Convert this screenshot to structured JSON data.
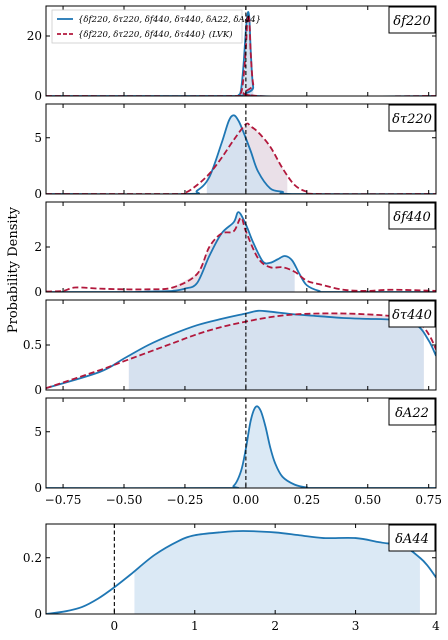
{
  "figure": {
    "ylabel": "Probability Density",
    "colors": {
      "blue": "#1f77b4",
      "red": "#b2183c",
      "blue_fill": "#cfe2f2",
      "red_fill": "#d9c7d6",
      "zero_line": "#000000"
    }
  },
  "legend": {
    "items": [
      {
        "label": "{δf220, δτ220, δf440, δτ440, δA22, δA44}",
        "style": "solid",
        "color": "#1f77b4"
      },
      {
        "label": "{δf220, δτ220, δf440, δτ440} (LVK)",
        "style": "dashed",
        "color": "#b2183c"
      }
    ]
  },
  "chart_data": [
    {
      "type": "area",
      "panel_label": "δf220",
      "xlim": [
        -0.82,
        0.78
      ],
      "ylim": [
        0,
        30
      ],
      "yticks": [
        0,
        20
      ],
      "ref_line_x": 0,
      "series": [
        {
          "style": "solid",
          "color": "#1f77b4",
          "x": [
            -0.82,
            -0.05,
            -0.03,
            -0.02,
            -0.01,
            0.0,
            0.005,
            0.01,
            0.015,
            0.02,
            0.03,
            0.05,
            0.78
          ],
          "y": [
            0,
            0,
            0.3,
            2,
            10,
            22,
            26,
            28,
            25,
            15,
            3,
            0,
            0
          ]
        },
        {
          "style": "dashed",
          "color": "#b2183c",
          "x": [
            -0.82,
            -0.04,
            -0.02,
            -0.01,
            0.0,
            0.005,
            0.01,
            0.015,
            0.02,
            0.03,
            0.05,
            0.78
          ],
          "y": [
            0,
            0,
            1,
            6,
            16,
            24,
            27,
            24,
            14,
            4,
            0,
            0
          ]
        }
      ],
      "fill_range": [
        -0.02,
        0.03
      ]
    },
    {
      "type": "area",
      "panel_label": "δτ220",
      "xlim": [
        -0.82,
        0.78
      ],
      "ylim": [
        0,
        8
      ],
      "yticks": [
        0,
        5
      ],
      "ref_line_x": 0,
      "series": [
        {
          "style": "solid",
          "color": "#1f77b4",
          "x": [
            -0.82,
            -0.25,
            -0.2,
            -0.15,
            -0.1,
            -0.07,
            -0.05,
            -0.03,
            -0.01,
            0.02,
            0.05,
            0.1,
            0.15,
            0.2,
            0.78
          ],
          "y": [
            0,
            0,
            0.3,
            1.5,
            4.5,
            6.5,
            7.0,
            6.5,
            5.5,
            3.8,
            2.0,
            0.5,
            0.2,
            0,
            0
          ]
        },
        {
          "style": "dashed",
          "color": "#b2183c",
          "x": [
            -0.82,
            -0.3,
            -0.25,
            -0.2,
            -0.15,
            -0.1,
            -0.05,
            0.0,
            0.02,
            0.05,
            0.1,
            0.15,
            0.2,
            0.25,
            0.3,
            0.78
          ],
          "y": [
            0,
            0,
            0.1,
            0.8,
            1.8,
            3.2,
            4.8,
            6.2,
            6.0,
            5.5,
            4.2,
            2.3,
            0.8,
            0.2,
            0,
            0
          ]
        }
      ],
      "fill_range": [
        -0.16,
        0.17
      ]
    },
    {
      "type": "area",
      "panel_label": "δf440",
      "xlim": [
        -0.82,
        0.78
      ],
      "ylim": [
        0,
        4
      ],
      "yticks": [
        0,
        2
      ],
      "ref_line_x": 0,
      "series": [
        {
          "style": "solid",
          "color": "#1f77b4",
          "x": [
            -0.82,
            -0.5,
            -0.4,
            -0.3,
            -0.25,
            -0.2,
            -0.15,
            -0.1,
            -0.05,
            -0.03,
            0.0,
            0.03,
            0.07,
            0.1,
            0.13,
            0.16,
            0.19,
            0.22,
            0.25,
            0.3,
            0.35,
            0.78
          ],
          "y": [
            0,
            0,
            0.02,
            0.05,
            0.15,
            0.4,
            1.6,
            2.6,
            3.1,
            3.55,
            3.0,
            2.2,
            1.35,
            1.3,
            1.45,
            1.6,
            1.4,
            0.8,
            0.3,
            0.05,
            0,
            0
          ]
        },
        {
          "style": "dashed",
          "color": "#b2183c",
          "x": [
            -0.82,
            -0.75,
            -0.7,
            -0.6,
            -0.5,
            -0.4,
            -0.3,
            -0.2,
            -0.15,
            -0.1,
            -0.05,
            -0.02,
            0.0,
            0.05,
            0.1,
            0.15,
            0.2,
            0.25,
            0.3,
            0.4,
            0.5,
            0.6,
            0.78
          ],
          "y": [
            0.02,
            0.05,
            0.2,
            0.15,
            0.12,
            0.12,
            0.2,
            0.8,
            2.0,
            2.6,
            2.7,
            3.3,
            2.7,
            1.5,
            1.1,
            1.1,
            0.9,
            0.5,
            0.35,
            0.1,
            0.05,
            0.1,
            0.05
          ]
        }
      ],
      "fill_range": [
        -0.3,
        0.2
      ]
    },
    {
      "type": "area",
      "panel_label": "δτ440",
      "xlim": [
        -0.82,
        0.78
      ],
      "ylim": [
        0,
        1
      ],
      "yticks": [
        0,
        0.5
      ],
      "ref_line_x": 0,
      "series": [
        {
          "style": "solid",
          "color": "#1f77b4",
          "x": [
            -0.82,
            -0.6,
            -0.5,
            -0.4,
            -0.3,
            -0.2,
            -0.1,
            0.0,
            0.05,
            0.1,
            0.2,
            0.3,
            0.4,
            0.5,
            0.6,
            0.7,
            0.75,
            0.78
          ],
          "y": [
            0.02,
            0.2,
            0.35,
            0.5,
            0.62,
            0.72,
            0.79,
            0.85,
            0.88,
            0.87,
            0.84,
            0.82,
            0.8,
            0.79,
            0.78,
            0.72,
            0.55,
            0.38
          ]
        },
        {
          "style": "dashed",
          "color": "#b2183c",
          "x": [
            -0.82,
            -0.6,
            -0.5,
            -0.4,
            -0.3,
            -0.2,
            -0.1,
            0.0,
            0.1,
            0.2,
            0.3,
            0.4,
            0.5,
            0.6,
            0.7,
            0.75,
            0.78
          ],
          "y": [
            0.02,
            0.22,
            0.32,
            0.42,
            0.52,
            0.62,
            0.7,
            0.76,
            0.81,
            0.84,
            0.85,
            0.85,
            0.84,
            0.82,
            0.77,
            0.62,
            0.45
          ]
        }
      ],
      "fill_range": [
        -0.48,
        0.73
      ]
    },
    {
      "type": "area",
      "panel_label": "δA22",
      "xlim": [
        -0.82,
        0.78
      ],
      "ylim": [
        0,
        8
      ],
      "yticks": [
        0,
        5
      ],
      "ref_line_x": 0,
      "xticks": [
        -0.75,
        -0.5,
        -0.25,
        0.0,
        0.25,
        0.5,
        0.75
      ],
      "xticklabels": [
        "−0.75",
        "−0.50",
        "−0.25",
        "0.00",
        "0.25",
        "0.50",
        "0.75"
      ],
      "series": [
        {
          "style": "solid",
          "color": "#1f77b4",
          "x": [
            -0.82,
            -0.1,
            -0.05,
            -0.02,
            0.0,
            0.02,
            0.04,
            0.06,
            0.08,
            0.1,
            0.12,
            0.15,
            0.2,
            0.25,
            0.3,
            0.78
          ],
          "y": [
            0,
            0,
            0.2,
            1.5,
            3.5,
            6.0,
            7.2,
            6.9,
            5.5,
            3.6,
            2.2,
            1.0,
            0.3,
            0.05,
            0,
            0
          ]
        }
      ],
      "fill_range": [
        -0.05,
        0.24
      ]
    },
    {
      "type": "area",
      "panel_label": "δA44",
      "xlim": [
        -0.85,
        4.0
      ],
      "ylim": [
        0,
        0.32
      ],
      "yticks": [
        0,
        0.2
      ],
      "ref_line_x": 0,
      "xticks": [
        0,
        1,
        2,
        3,
        4
      ],
      "xticklabels": [
        "0",
        "1",
        "2",
        "3",
        "4"
      ],
      "series": [
        {
          "style": "solid",
          "color": "#1f77b4",
          "x": [
            -0.85,
            -0.6,
            -0.4,
            -0.2,
            0.0,
            0.2,
            0.5,
            0.8,
            1.0,
            1.3,
            1.6,
            2.0,
            2.3,
            2.6,
            3.0,
            3.3,
            3.6,
            3.8,
            3.9,
            4.0
          ],
          "y": [
            0.0,
            0.01,
            0.025,
            0.055,
            0.095,
            0.14,
            0.21,
            0.26,
            0.28,
            0.29,
            0.295,
            0.29,
            0.28,
            0.27,
            0.27,
            0.255,
            0.24,
            0.2,
            0.17,
            0.13
          ]
        }
      ],
      "fill_range": [
        0.25,
        3.8
      ]
    }
  ]
}
